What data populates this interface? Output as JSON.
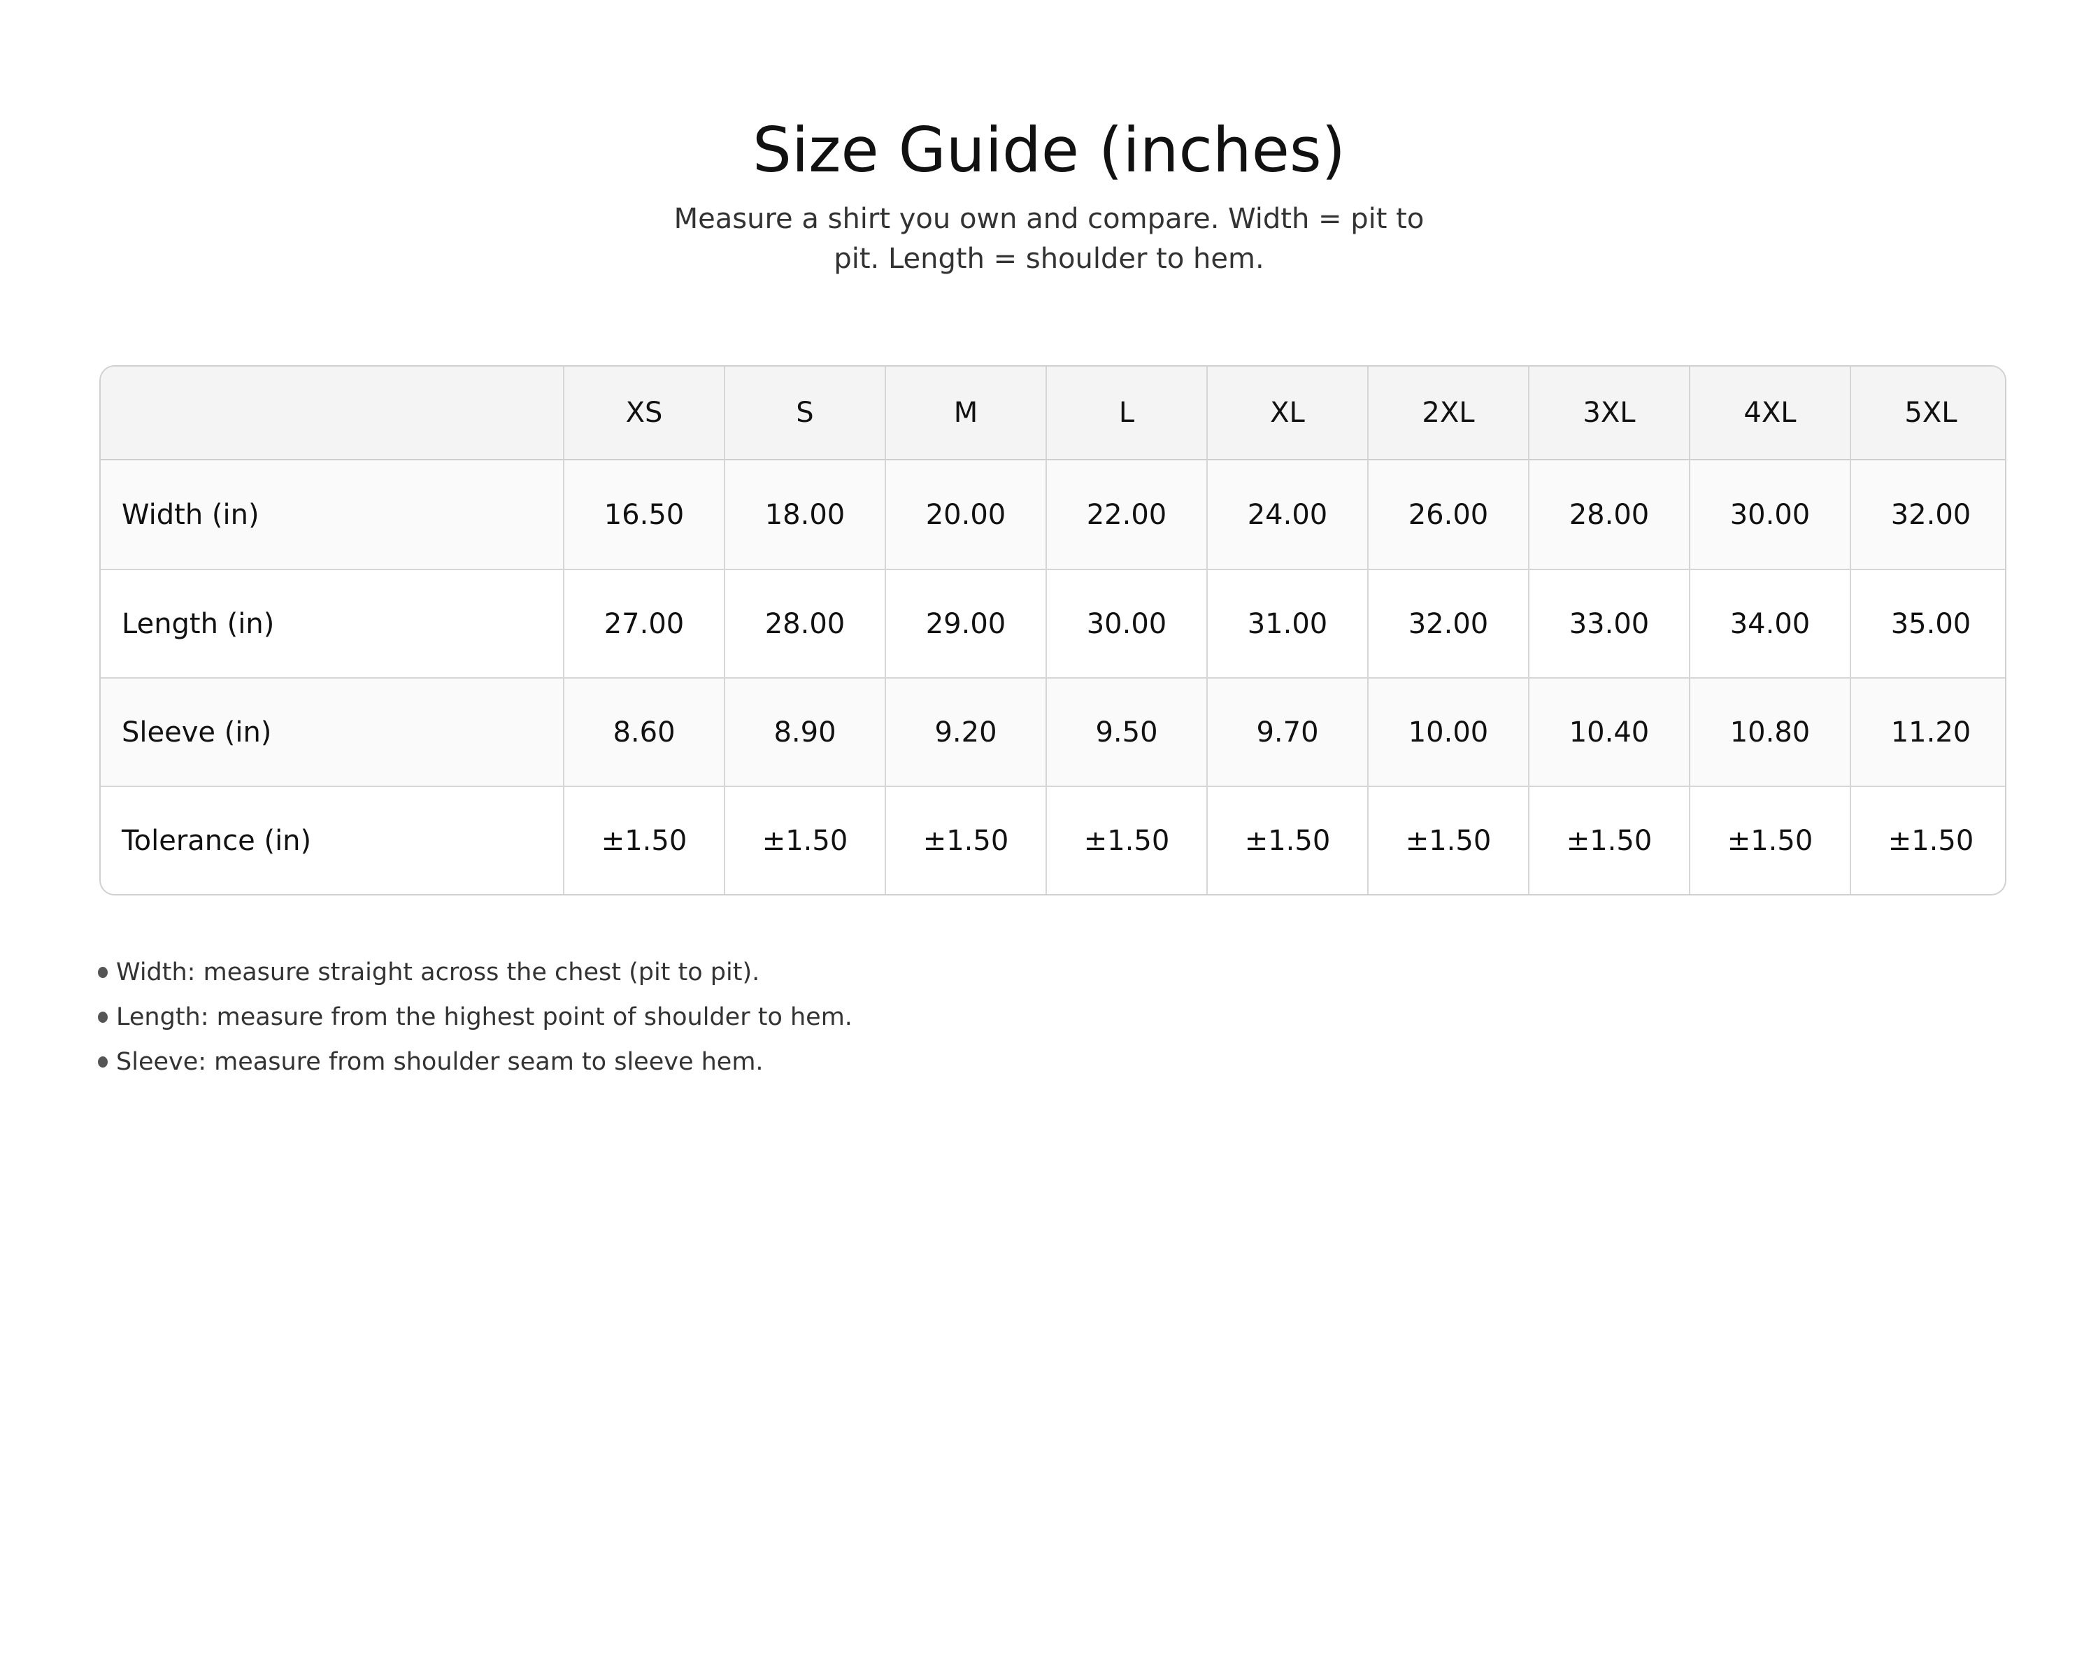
{
  "title": "Size Guide (inches)",
  "subtitle": "Measure a shirt you own and compare. Width = pit to pit. Length = shoulder to hem.",
  "table": {
    "headers": [
      "",
      "XS",
      "S",
      "M",
      "L",
      "XL",
      "2XL",
      "3XL",
      "4XL",
      "5XL"
    ],
    "rows": [
      [
        "Width (in)",
        "16.50",
        "18.00",
        "20.00",
        "22.00",
        "24.00",
        "26.00",
        "28.00",
        "30.00",
        "32.00"
      ],
      [
        "Length (in)",
        "27.00",
        "28.00",
        "29.00",
        "30.00",
        "31.00",
        "32.00",
        "33.00",
        "34.00",
        "35.00"
      ],
      [
        "Sleeve (in)",
        "8.60",
        "8.90",
        "9.20",
        "9.50",
        "9.70",
        "10.00",
        "10.40",
        "10.80",
        "11.20"
      ],
      [
        "Tolerance (in)",
        "±1.50",
        "±1.50",
        "±1.50",
        "±1.50",
        "±1.50",
        "±1.50",
        "±1.50",
        "±1.50",
        "±1.50"
      ]
    ]
  },
  "notes": [
    "Width: measure straight across the chest (pit to pit).",
    "Length: measure from the highest point of shoulder to hem.",
    "Sleeve: measure from shoulder seam to sleeve hem."
  ]
}
